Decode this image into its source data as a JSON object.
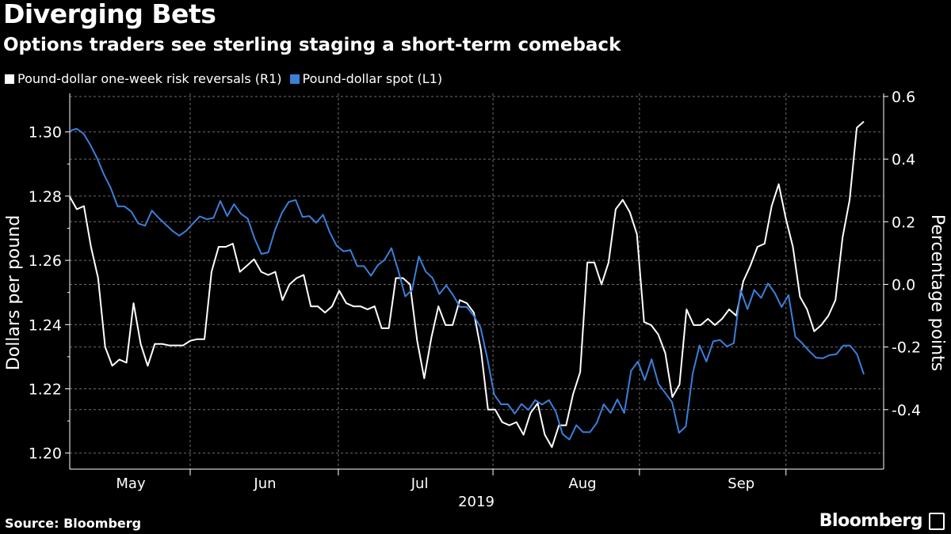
{
  "colors": {
    "background": "#000000",
    "spot": "#3b7fd9",
    "risk": "#ffffff",
    "grid": "#6e6e6e"
  },
  "title": "Diverging Bets",
  "subtitle": "Options traders see sterling staging a short-term comeback",
  "source": "Source: Bloomberg",
  "brand": "Bloomberg",
  "legend": {
    "risk_label": "Pound-dollar one-week risk reversals (R1)",
    "spot_label": "Pound-dollar spot (L1)"
  },
  "chart_data": {
    "type": "line",
    "xlabel": "2019",
    "month_labels": [
      "May",
      "Jun",
      "Jul",
      "Aug",
      "Sep"
    ],
    "left_axis": {
      "label": "Dollars per pound",
      "ylim": [
        1.195,
        1.312
      ],
      "ticks": [
        "1.20",
        "1.22",
        "1.24",
        "1.26",
        "1.28",
        "1.30"
      ]
    },
    "right_axis": {
      "label": "Percentage points",
      "ylim": [
        -0.59,
        0.61
      ],
      "ticks": [
        "-0.4",
        "-0.2",
        "0.0",
        "0.2",
        "0.4",
        "0.6"
      ]
    },
    "grid": true,
    "series": [
      {
        "name": "Pound-dollar spot (L1)",
        "axis": "left",
        "color": "#3b7fd9",
        "values": [
          1.3003,
          1.301,
          1.2995,
          1.296,
          1.2918,
          1.2867,
          1.2825,
          1.2768,
          1.2768,
          1.2752,
          1.2715,
          1.2708,
          1.2755,
          1.2732,
          1.2712,
          1.2692,
          1.2677,
          1.2692,
          1.2715,
          1.2737,
          1.2728,
          1.2732,
          1.2785,
          1.2738,
          1.2775,
          1.2745,
          1.273,
          1.2668,
          1.262,
          1.2625,
          1.2695,
          1.2748,
          1.2782,
          1.2788,
          1.2735,
          1.2738,
          1.2717,
          1.2742,
          1.2687,
          1.2645,
          1.2628,
          1.2632,
          1.2582,
          1.2582,
          1.2552,
          1.2585,
          1.2602,
          1.2638,
          1.2568,
          1.2488,
          1.2508,
          1.2612,
          1.2565,
          1.2545,
          1.2495,
          1.2522,
          1.2492,
          1.2455,
          1.2455,
          1.2428,
          1.2392,
          1.2295,
          1.2182,
          1.2152,
          1.2152,
          1.2123,
          1.2153,
          1.2134,
          1.2165,
          1.2151,
          1.2165,
          1.2129,
          1.2059,
          1.2042,
          1.2087,
          1.2065,
          1.2065,
          1.2094,
          1.2152,
          1.2125,
          1.2167,
          1.2125,
          1.2256,
          1.2285,
          1.2227,
          1.2292,
          1.2215,
          1.2187,
          1.2158,
          1.2063,
          1.2083,
          1.2248,
          1.2335,
          1.2285,
          1.2348,
          1.2352,
          1.2332,
          1.2342,
          1.2508,
          1.2448,
          1.2508,
          1.2483,
          1.2528,
          1.2498,
          1.2455,
          1.2492,
          1.2362,
          1.2342,
          1.2318,
          1.2297,
          1.2295,
          1.2305,
          1.2308,
          1.2335,
          1.2335,
          1.2308,
          1.2245
        ]
      },
      {
        "name": "Pound-dollar one-week risk reversals (R1)",
        "axis": "right",
        "color": "#ffffff",
        "values": [
          0.28,
          0.24,
          0.25,
          0.12,
          0.02,
          -0.2,
          -0.26,
          -0.24,
          -0.25,
          -0.06,
          -0.19,
          -0.26,
          -0.19,
          -0.19,
          -0.195,
          -0.195,
          -0.195,
          -0.18,
          -0.175,
          -0.175,
          0.04,
          0.12,
          0.12,
          0.13,
          0.04,
          0.06,
          0.08,
          0.04,
          0.03,
          0.04,
          -0.05,
          0.0,
          0.02,
          0.03,
          -0.07,
          -0.07,
          -0.09,
          -0.07,
          -0.02,
          -0.06,
          -0.07,
          -0.07,
          -0.08,
          -0.07,
          -0.14,
          -0.14,
          0.02,
          0.02,
          0.0,
          -0.18,
          -0.3,
          -0.17,
          -0.07,
          -0.13,
          -0.13,
          -0.05,
          -0.06,
          -0.09,
          -0.21,
          -0.4,
          -0.4,
          -0.44,
          -0.45,
          -0.44,
          -0.48,
          -0.41,
          -0.38,
          -0.48,
          -0.52,
          -0.45,
          -0.45,
          -0.35,
          -0.28,
          0.07,
          0.07,
          0.0,
          0.07,
          0.24,
          0.27,
          0.23,
          0.16,
          -0.12,
          -0.13,
          -0.16,
          -0.22,
          -0.36,
          -0.32,
          -0.08,
          -0.13,
          -0.13,
          -0.11,
          -0.13,
          -0.11,
          -0.08,
          -0.1,
          0.01,
          0.06,
          0.12,
          0.13,
          0.25,
          0.32,
          0.21,
          0.12,
          -0.04,
          -0.08,
          -0.15,
          -0.13,
          -0.1,
          -0.05,
          0.15,
          0.27,
          0.5,
          0.52
        ]
      }
    ]
  }
}
